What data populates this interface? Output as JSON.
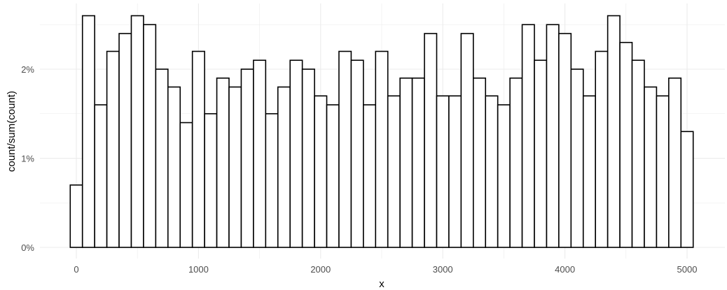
{
  "chart_data": {
    "type": "bar",
    "subtype": "histogram",
    "xlabel": "x",
    "ylabel": "count/sum(count)",
    "binwidth": 100,
    "x": [
      0,
      100,
      200,
      300,
      400,
      500,
      600,
      700,
      800,
      900,
      1000,
      1100,
      1200,
      1300,
      1400,
      1500,
      1600,
      1700,
      1800,
      1900,
      2000,
      2100,
      2200,
      2300,
      2400,
      2500,
      2600,
      2700,
      2800,
      2900,
      3000,
      3100,
      3200,
      3300,
      3400,
      3500,
      3600,
      3700,
      3800,
      3900,
      4000,
      4100,
      4200,
      4300,
      4400,
      4500,
      4600,
      4700,
      4800,
      4900,
      5000
    ],
    "values": [
      0.7,
      2.6,
      1.6,
      2.2,
      2.4,
      2.6,
      2.5,
      2.0,
      1.8,
      1.4,
      2.2,
      1.5,
      1.9,
      1.8,
      2.0,
      2.1,
      1.5,
      1.8,
      2.1,
      2.0,
      1.7,
      1.6,
      2.2,
      2.1,
      1.6,
      2.2,
      1.7,
      1.9,
      1.9,
      2.4,
      1.7,
      1.7,
      2.4,
      1.9,
      1.7,
      1.6,
      1.9,
      2.5,
      2.1,
      2.5,
      2.4,
      2.0,
      1.7,
      2.2,
      2.6,
      2.3,
      2.1,
      1.8,
      1.7,
      1.9,
      1.3
    ],
    "value_unit": "%",
    "xlim": [
      -300,
      5250
    ],
    "ylim": [
      0,
      2.75
    ],
    "x_ticks": [
      "0",
      "1000",
      "2000",
      "3000",
      "4000",
      "5000"
    ],
    "y_ticks": [
      "0%",
      "1%",
      "2%"
    ],
    "grid": true,
    "bar_fill": "#ffffff",
    "bar_stroke": "#000000",
    "grid_color": "#ebebeb"
  }
}
